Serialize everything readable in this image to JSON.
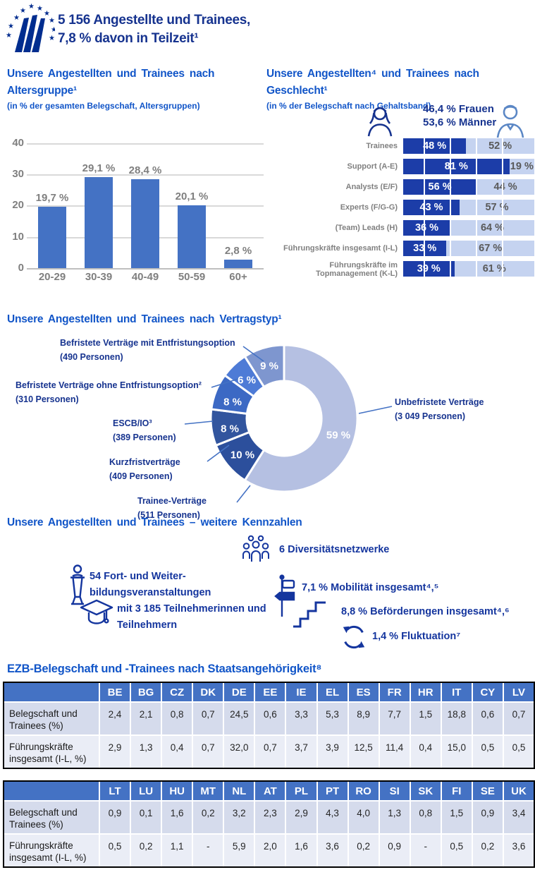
{
  "header": {
    "line1": "5 156 Angestellte und Trainees,",
    "line2": "7,8 % davon in Teilzeit¹",
    "text_color": "#16338F"
  },
  "age_section": {
    "title_line1": "Unsere Angestellten und Trainees nach",
    "title_line2": "Altersgruppe¹",
    "subtitle": "(in % der gesamten Belegschaft, Altersgruppen)"
  },
  "gender_section": {
    "title_line1": "Unsere Angestellten⁴ und Trainees nach",
    "title_line2": "Geschlecht¹",
    "subtitle": "(in % der Belegschaft nach Gehaltsband)",
    "annotation_line1": "46,4 % Frauen",
    "annotation_line2": "53,6 % Männer",
    "woman_icon": "woman-icon",
    "man_icon": "man-icon"
  },
  "contract_section": {
    "title": "Unsere Angestellten und Trainees nach Vertragstyp¹",
    "labels": {
      "mit": {
        "line1": "Befristete Verträge mit Entfristungsoption",
        "line2": "(490 Personen)"
      },
      "ohne": {
        "line1": "Befristete Verträge ohne Entfristungsoption²",
        "line2": "(310 Personen)"
      },
      "escb": {
        "line1": "ESCB/IO³",
        "line2": "(389 Personen)"
      },
      "kurzfrist": {
        "line1": "Kurzfristverträge",
        "line2": "(409 Personen)"
      },
      "trainee": {
        "line1": "Trainee-Verträge",
        "line2": "(511 Personen)"
      },
      "unbefristet": {
        "line1": "Unbefristete Verträge",
        "line2": "(3 049 Personen)"
      }
    }
  },
  "metrics_section": {
    "title": "Unsere Angestellten und Trainees – weitere Kennzahlen",
    "items": [
      {
        "icon": "people-group-icon",
        "text": "6 Diversitätsnetzwerke"
      },
      {
        "icon": "speaker-lectern-icon",
        "line1": "54 Fort- und Weiter-",
        "line2": "bildungsveranstaltungen"
      },
      {
        "icon": "signpost-icon",
        "text": "7,1 % Mobilität insgesamt⁴,⁵"
      },
      {
        "icon": "graduation-cap-icon",
        "line1": "mit 3 185 Teilnehmerinnen und",
        "line2": "Teilnehmern"
      },
      {
        "icon": "stairs-icon",
        "text": "8,8 % Beförderungen insgesamt⁴,⁶"
      },
      {
        "icon": "cycle-arrows-icon",
        "text": "1,4 % Fluktuation⁷"
      }
    ]
  },
  "nationality_section": {
    "title": "EZB-Belegschaft und -Trainees nach Staatsangehörigkeit⁸"
  },
  "colors": {
    "ecb_navy_logo": "#002D8F",
    "title_blue": "#1155C8",
    "navy_text": "#16338F",
    "metric_blue": "#14359E",
    "bar_blue": "#4472C4",
    "women_segment": "#1C3DA8",
    "men_segment": "#C5D3F0",
    "table_header": "#4472C4",
    "table_row_a": "#D5DBEC",
    "table_row_b": "#EAEDF6",
    "gray_label": "#7F7F7F"
  },
  "chart_data": [
    {
      "type": "bar",
      "title": "Unsere Angestellten und Trainees nach Altersgruppe",
      "subtitle": "in % der gesamten Belegschaft, Altersgruppen",
      "categories": [
        "20-29",
        "30-39",
        "40-49",
        "50-59",
        "60+"
      ],
      "values": [
        19.7,
        29.1,
        28.4,
        20.1,
        2.8
      ],
      "value_labels": [
        "19,7 %",
        "29,1 %",
        "28,4 %",
        "20,1 %",
        "2,8 %"
      ],
      "ylim": [
        0,
        40
      ],
      "yticks": [
        0,
        10,
        20,
        30,
        40
      ],
      "ytick_labels_desc": [
        "40",
        "30",
        "20",
        "10",
        "0"
      ],
      "grid": true,
      "bar_color": "#4472C4"
    },
    {
      "type": "bar",
      "subtype": "stacked-horizontal",
      "title": "Unsere Angestellten und Trainees nach Geschlecht",
      "subtitle": "in % der Belegschaft nach Gehaltsband",
      "categories": [
        "Trainees",
        "Support (A-E)",
        "Analysts (E/F)",
        "Experts (F/G-G)",
        "(Team) Leads (H)",
        "Führungskräfte insgesamt (I-L)",
        "Führungskräfte im Topmanagement (K-L)"
      ],
      "xlim": [
        0,
        100
      ],
      "series": [
        {
          "name": "Frauen",
          "total_label": "46,4 % Frauen",
          "color": "#1C3DA8",
          "values": [
            48,
            81,
            56,
            43,
            36,
            33,
            39
          ],
          "labels": [
            "48 %",
            "81 %",
            "56 %",
            "43 %",
            "36 %",
            "33 %",
            "39 %"
          ]
        },
        {
          "name": "Männer",
          "total_label": "53,6 % Männer",
          "color": "#C5D3F0",
          "values": [
            52,
            19,
            44,
            57,
            64,
            67,
            61
          ],
          "labels": [
            "52 %",
            "19 %",
            "44 %",
            "57 %",
            "64 %",
            "67 %",
            "61 %"
          ]
        }
      ]
    },
    {
      "type": "pie",
      "subtype": "donut",
      "title": "Unsere Angestellten und Trainees nach Vertragstyp",
      "slices": [
        {
          "name": "Unbefristete Verträge",
          "persons": "3 049 Personen",
          "pct": 59,
          "label": "59 %",
          "color": "#B5C0E2"
        },
        {
          "name": "Trainee-Verträge",
          "persons": "511 Personen",
          "pct": 10,
          "label": "10 %",
          "color": "#2C4F9C"
        },
        {
          "name": "Kurzfristverträge",
          "persons": "409 Personen",
          "pct": 8,
          "label": "8 %",
          "color": "#32559E"
        },
        {
          "name": "ESCB/IO³",
          "persons": "389 Personen",
          "pct": 8,
          "label": "8 %",
          "color": "#3C69C4"
        },
        {
          "name": "Befristete Verträge ohne Entfristungsoption²",
          "persons": "310 Personen",
          "pct": 6,
          "label": "6 %",
          "color": "#4E7BD6"
        },
        {
          "name": "Befristete Verträge mit Entfristungsoption",
          "persons": "490 Personen",
          "pct": 9,
          "label": "9 %",
          "color": "#7E96CF"
        }
      ]
    },
    {
      "type": "table",
      "headers": [
        "",
        "BE",
        "BG",
        "CZ",
        "DK",
        "DE",
        "EE",
        "IE",
        "EL",
        "ES",
        "FR",
        "HR",
        "IT",
        "CY",
        "LV"
      ],
      "rows": [
        {
          "label": "Belegschaft und Trainees (%)",
          "values": [
            "2,4",
            "2,1",
            "0,8",
            "0,7",
            "24,5",
            "0,6",
            "3,3",
            "5,3",
            "8,9",
            "7,7",
            "1,5",
            "18,8",
            "0,6",
            "0,7"
          ]
        },
        {
          "label": "Führungskräfte insgesamt (I-L, %)",
          "values": [
            "2,9",
            "1,3",
            "0,4",
            "0,7",
            "32,0",
            "0,7",
            "3,7",
            "3,9",
            "12,5",
            "11,4",
            "0,4",
            "15,0",
            "0,5",
            "0,5"
          ]
        }
      ]
    },
    {
      "type": "table",
      "headers": [
        "",
        "LT",
        "LU",
        "HU",
        "MT",
        "NL",
        "AT",
        "PL",
        "PT",
        "RO",
        "SI",
        "SK",
        "FI",
        "SE",
        "UK"
      ],
      "rows": [
        {
          "label": "Belegschaft und Trainees (%)",
          "values": [
            "0,9",
            "0,1",
            "1,6",
            "0,2",
            "3,2",
            "2,3",
            "2,9",
            "4,3",
            "4,0",
            "1,3",
            "0,8",
            "1,5",
            "0,9",
            "3,4"
          ]
        },
        {
          "label": "Führungskräfte insgesamt (I-L, %)",
          "values": [
            "0,5",
            "0,2",
            "1,1",
            "-",
            "5,9",
            "2,0",
            "1,6",
            "3,6",
            "0,2",
            "0,9",
            "-",
            "0,5",
            "0,2",
            "3,6"
          ]
        }
      ]
    }
  ]
}
